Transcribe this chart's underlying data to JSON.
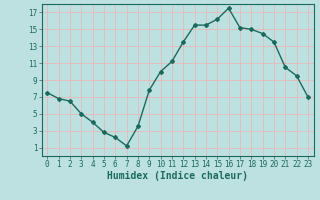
{
  "x": [
    0,
    1,
    2,
    3,
    4,
    5,
    6,
    7,
    8,
    9,
    10,
    11,
    12,
    13,
    14,
    15,
    16,
    17,
    18,
    19,
    20,
    21,
    22,
    23
  ],
  "y": [
    7.5,
    6.8,
    6.5,
    5.0,
    4.0,
    2.8,
    2.2,
    1.2,
    3.5,
    7.8,
    10.0,
    11.2,
    13.5,
    15.5,
    15.5,
    16.2,
    17.5,
    15.2,
    15.0,
    14.5,
    13.5,
    10.5,
    9.5,
    7.0
  ],
  "xlabel": "Humidex (Indice chaleur)",
  "bg_color": "#bde0e0",
  "line_color": "#1a6b5e",
  "grid_color": "#e8b8b8",
  "xlim": [
    -0.5,
    23.5
  ],
  "ylim": [
    0,
    18
  ],
  "yticks": [
    1,
    3,
    5,
    7,
    9,
    11,
    13,
    15,
    17
  ],
  "xticks": [
    0,
    1,
    2,
    3,
    4,
    5,
    6,
    7,
    8,
    9,
    10,
    11,
    12,
    13,
    14,
    15,
    16,
    17,
    18,
    19,
    20,
    21,
    22,
    23
  ],
  "xtick_labels": [
    "0",
    "1",
    "2",
    "3",
    "4",
    "5",
    "6",
    "7",
    "8",
    "9",
    "10",
    "11",
    "12",
    "13",
    "14",
    "15",
    "16",
    "17",
    "18",
    "19",
    "20",
    "21",
    "22",
    "23"
  ],
  "marker": "D",
  "marker_size": 2.0,
  "line_width": 1.0,
  "font_size_ticks": 5.5,
  "font_size_xlabel": 7.0
}
